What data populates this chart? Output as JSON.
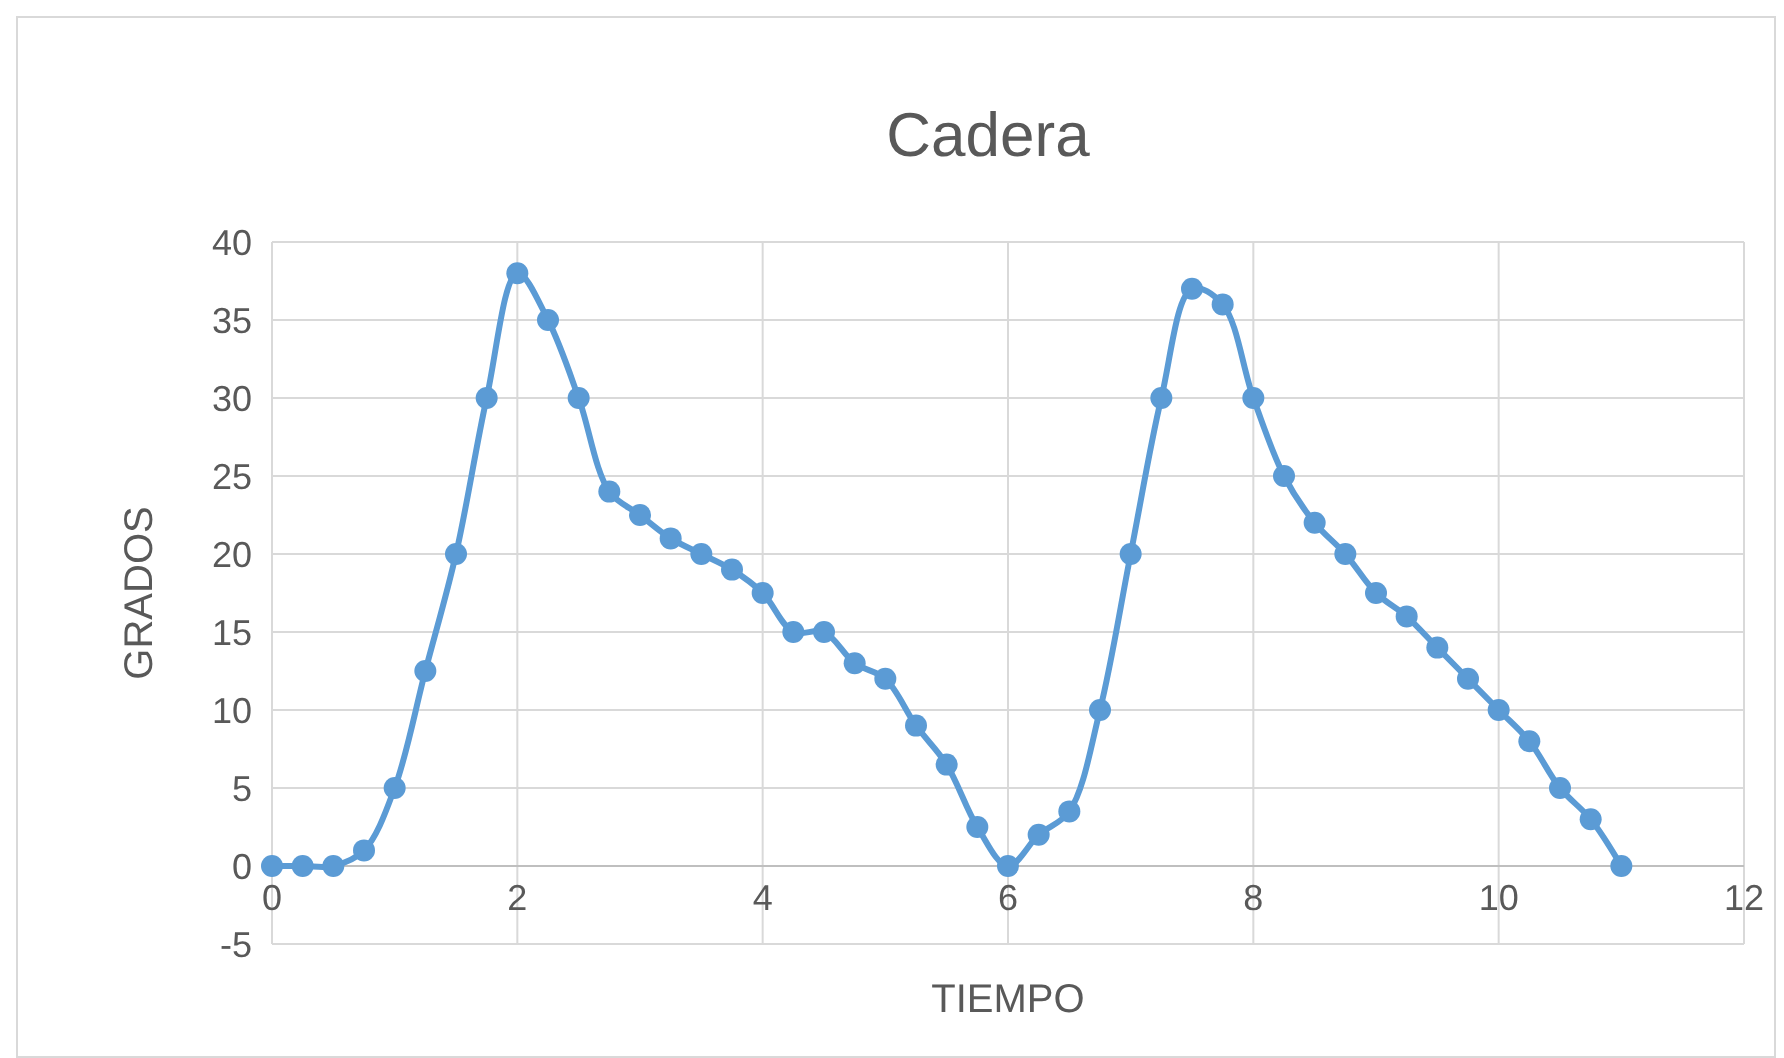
{
  "chart_data": {
    "type": "line",
    "title": "Cadera",
    "xlabel": "TIEMPO",
    "ylabel": "GRADOS",
    "x": [
      0,
      0.25,
      0.5,
      0.75,
      1,
      1.25,
      1.5,
      1.75,
      2,
      2.25,
      2.5,
      2.75,
      3,
      3.25,
      3.5,
      3.75,
      4,
      4.25,
      4.5,
      4.75,
      5,
      5.25,
      5.5,
      5.75,
      6,
      6.25,
      6.5,
      6.75,
      7,
      7.25,
      7.5,
      7.75,
      8,
      8.25,
      8.5,
      8.75,
      9,
      9.25,
      9.5,
      9.75,
      10,
      10.25,
      10.5,
      10.75,
      11
    ],
    "series": [
      {
        "color": "#5b9bd5",
        "values": [
          0,
          0,
          0,
          1,
          5,
          12.5,
          20,
          30,
          38,
          35,
          30,
          24,
          22.5,
          21,
          20,
          19,
          17.5,
          15,
          15,
          13,
          12,
          9,
          6.5,
          2.5,
          0,
          2,
          3.5,
          10,
          20,
          30,
          37,
          36,
          30,
          25,
          22,
          20,
          17.5,
          16,
          14,
          12,
          10,
          8,
          5,
          3,
          0
        ]
      }
    ],
    "xlim": [
      0,
      12
    ],
    "xticks": [
      0,
      2,
      4,
      6,
      8,
      10,
      12
    ],
    "ylim": [
      -5,
      40
    ],
    "yticks": [
      -5,
      0,
      5,
      10,
      15,
      20,
      25,
      30,
      35,
      40
    ],
    "grid": true,
    "marker": "circle",
    "line_style": "solid"
  }
}
